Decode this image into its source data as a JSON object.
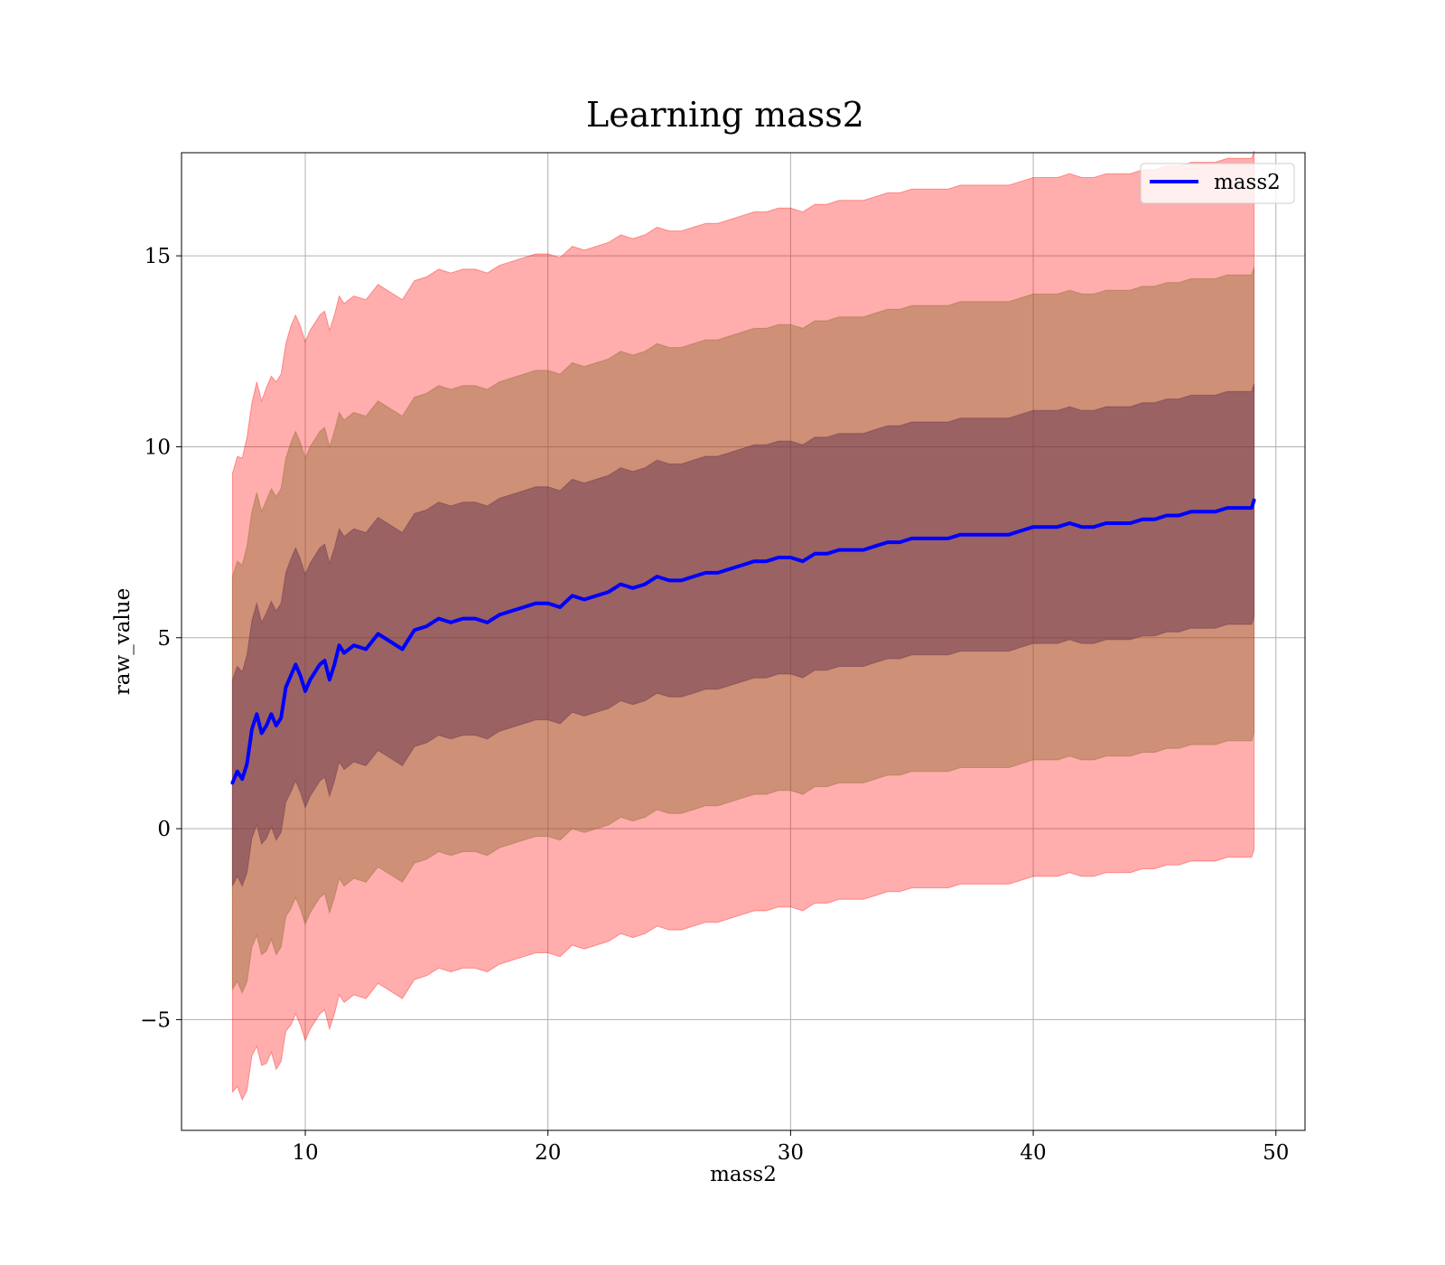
{
  "chart_data": {
    "type": "line",
    "title": "Learning mass2",
    "xlabel": "mass2",
    "ylabel": "raw_value",
    "xlim": [
      4.9,
      51.2
    ],
    "ylim": [
      -7.9,
      17.7
    ],
    "xticks": [
      10,
      20,
      30,
      40,
      50
    ],
    "yticks": [
      -5,
      0,
      5,
      10,
      15
    ],
    "xtick_labels": [
      "10",
      "20",
      "30",
      "40",
      "50"
    ],
    "ytick_labels": [
      "−5",
      "0",
      "5",
      "10",
      "15"
    ],
    "grid": true,
    "legend_position": "top-right",
    "colors": {
      "line": "#0000ff",
      "band_3sigma": "#ff0000",
      "band_2sigma": "#8b6a2a",
      "band_1sigma": "#5e2a4e"
    },
    "series": [
      {
        "name": "mass2",
        "x": [
          7.0,
          7.2,
          7.4,
          7.6,
          7.8,
          8.0,
          8.2,
          8.4,
          8.6,
          8.8,
          9.0,
          9.2,
          9.4,
          9.6,
          9.8,
          10.0,
          10.2,
          10.4,
          10.6,
          10.8,
          11.0,
          11.2,
          11.4,
          11.6,
          11.8,
          12.0,
          12.5,
          13.0,
          13.5,
          14.0,
          14.5,
          15.0,
          15.5,
          16.0,
          16.5,
          17.0,
          17.5,
          18.0,
          18.5,
          19.0,
          19.5,
          20.0,
          20.5,
          21.0,
          21.5,
          22.0,
          22.5,
          23.0,
          23.5,
          24.0,
          24.5,
          25.0,
          25.5,
          26.0,
          26.5,
          27.0,
          27.5,
          28.0,
          28.5,
          29.0,
          29.5,
          30.0,
          30.5,
          31.0,
          31.5,
          32.0,
          32.5,
          33.0,
          33.5,
          34.0,
          34.5,
          35.0,
          35.5,
          36.0,
          36.5,
          37.0,
          37.5,
          38.0,
          38.5,
          39.0,
          39.5,
          40.0,
          40.5,
          41.0,
          41.5,
          42.0,
          42.5,
          43.0,
          43.5,
          44.0,
          44.5,
          45.0,
          45.5,
          46.0,
          46.5,
          47.0,
          47.5,
          48.0,
          48.5,
          49.0,
          49.1
        ],
        "values": [
          1.2,
          1.5,
          1.3,
          1.7,
          2.6,
          3.0,
          2.5,
          2.7,
          3.0,
          2.7,
          2.9,
          3.7,
          4.0,
          4.3,
          4.0,
          3.6,
          3.9,
          4.1,
          4.3,
          4.4,
          3.9,
          4.3,
          4.8,
          4.6,
          4.7,
          4.8,
          4.7,
          5.1,
          4.9,
          4.7,
          5.2,
          5.3,
          5.5,
          5.4,
          5.5,
          5.5,
          5.4,
          5.6,
          5.7,
          5.8,
          5.9,
          5.9,
          5.8,
          6.1,
          6.0,
          6.1,
          6.2,
          6.4,
          6.3,
          6.4,
          6.6,
          6.5,
          6.5,
          6.6,
          6.7,
          6.7,
          6.8,
          6.9,
          7.0,
          7.0,
          7.1,
          7.1,
          7.0,
          7.2,
          7.2,
          7.3,
          7.3,
          7.3,
          7.4,
          7.5,
          7.5,
          7.6,
          7.6,
          7.6,
          7.6,
          7.7,
          7.7,
          7.7,
          7.7,
          7.7,
          7.8,
          7.9,
          7.9,
          7.9,
          8.0,
          7.9,
          7.9,
          8.0,
          8.0,
          8.0,
          8.1,
          8.1,
          8.2,
          8.2,
          8.3,
          8.3,
          8.3,
          8.4,
          8.4,
          8.4,
          8.6
        ],
        "std": [
          2.7,
          2.75,
          2.8,
          2.85,
          2.85,
          2.9,
          2.9,
          2.95,
          2.95,
          3.0,
          3.0,
          3.0,
          3.05,
          3.05,
          3.05,
          3.05,
          3.05,
          3.05,
          3.05,
          3.05,
          3.05,
          3.05,
          3.05,
          3.05,
          3.05,
          3.05,
          3.05,
          3.05,
          3.05,
          3.05,
          3.05,
          3.05,
          3.05,
          3.05,
          3.05,
          3.05,
          3.05,
          3.05,
          3.05,
          3.05,
          3.05,
          3.05,
          3.05,
          3.05,
          3.05,
          3.05,
          3.05,
          3.05,
          3.05,
          3.05,
          3.05,
          3.05,
          3.05,
          3.05,
          3.05,
          3.05,
          3.05,
          3.05,
          3.05,
          3.05,
          3.05,
          3.05,
          3.05,
          3.05,
          3.05,
          3.05,
          3.05,
          3.05,
          3.05,
          3.05,
          3.05,
          3.05,
          3.05,
          3.05,
          3.05,
          3.05,
          3.05,
          3.05,
          3.05,
          3.05,
          3.05,
          3.05,
          3.05,
          3.05,
          3.05,
          3.05,
          3.05,
          3.05,
          3.05,
          3.05,
          3.05,
          3.05,
          3.05,
          3.05,
          3.05,
          3.05,
          3.05,
          3.05,
          3.05,
          3.05,
          3.05
        ]
      }
    ]
  }
}
